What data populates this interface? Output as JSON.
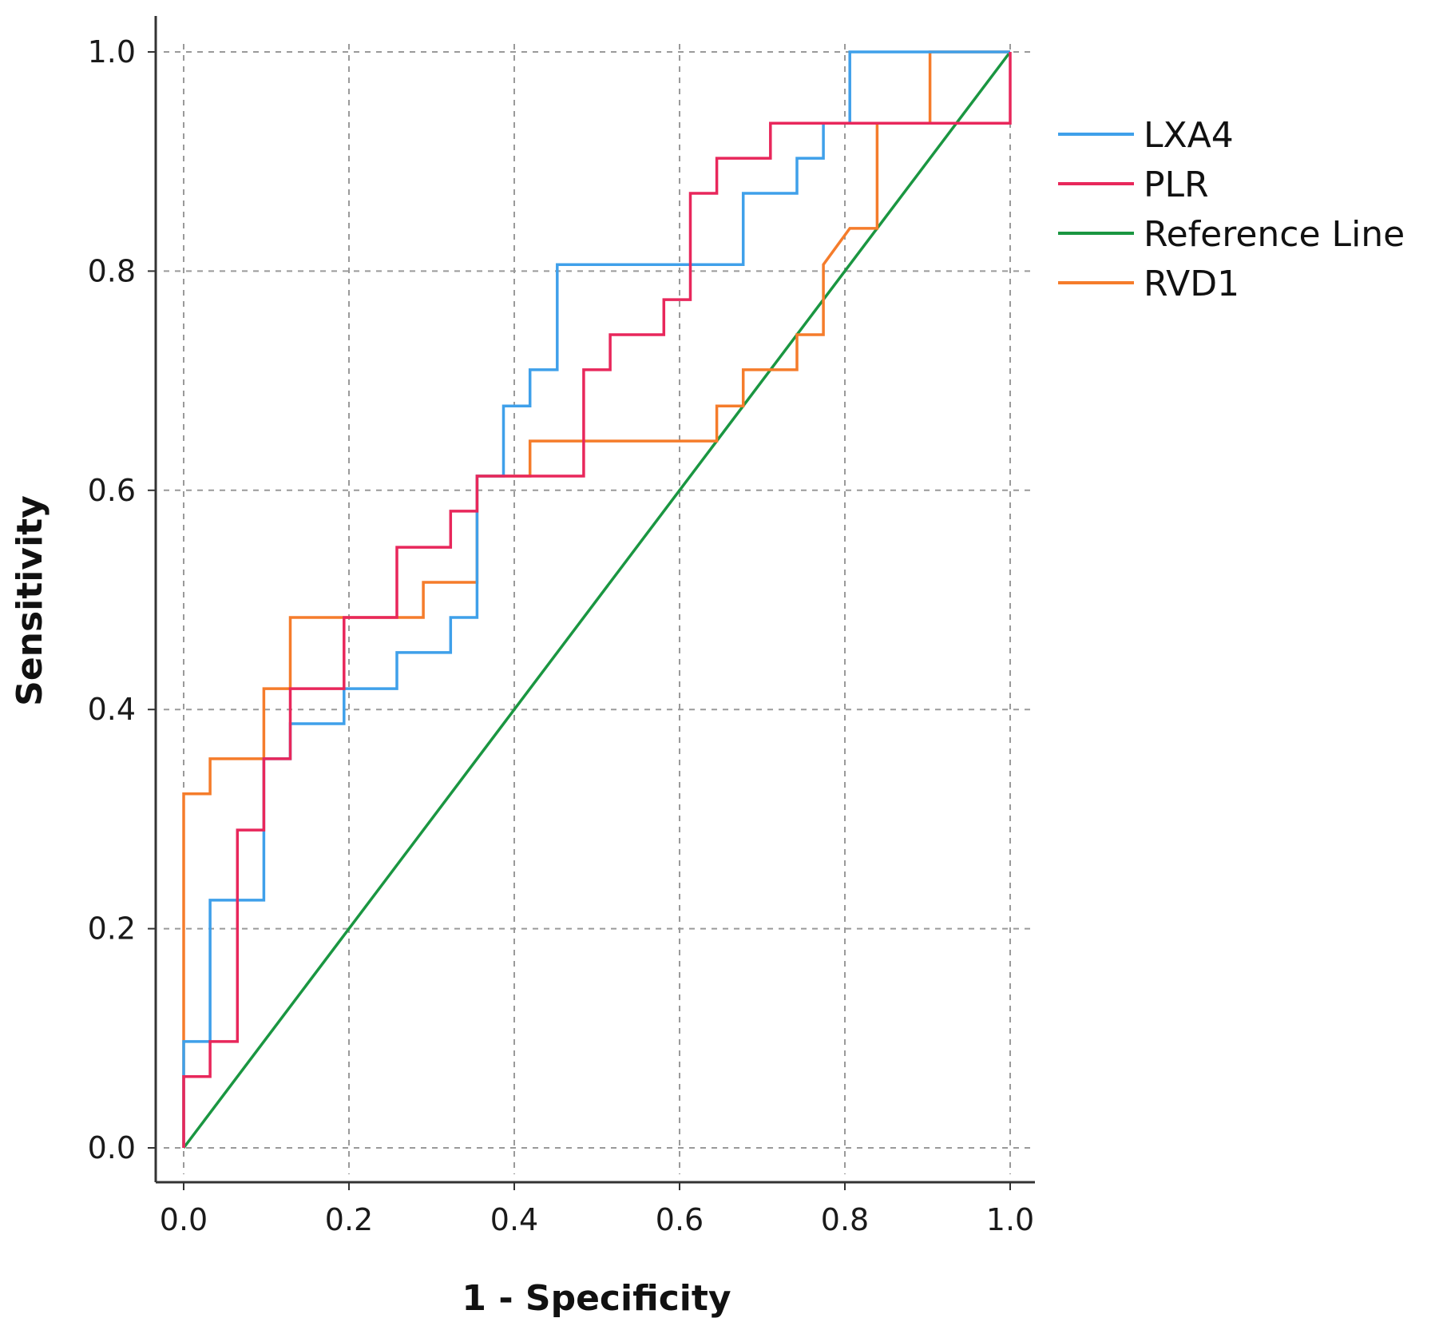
{
  "chart_data": {
    "type": "line",
    "title": "",
    "xlabel": "1 - Specificity",
    "ylabel": "Sensitivity",
    "xlim": [
      0,
      1
    ],
    "ylim": [
      0,
      1
    ],
    "xticks": [
      0.0,
      0.2,
      0.4,
      0.6,
      0.8,
      1.0
    ],
    "yticks": [
      0.0,
      0.2,
      0.4,
      0.6,
      0.8,
      1.0
    ],
    "tick_labels": [
      "0.0",
      "0.2",
      "0.4",
      "0.6",
      "0.8",
      "1.0"
    ],
    "grid": true,
    "legend_position": "right",
    "series": [
      {
        "name": "LXA4",
        "color": "#3fa0ea",
        "x": [
          0,
          0,
          0.032,
          0.032,
          0.097,
          0.097,
          0.129,
          0.129,
          0.194,
          0.194,
          0.258,
          0.258,
          0.323,
          0.323,
          0.355,
          0.355,
          0.387,
          0.387,
          0.419,
          0.419,
          0.452,
          0.452,
          0.677,
          0.677,
          0.742,
          0.742,
          0.774,
          0.774,
          0.806,
          0.806,
          1.0,
          1.0
        ],
        "y": [
          0,
          0.097,
          0.097,
          0.226,
          0.226,
          0.355,
          0.355,
          0.387,
          0.387,
          0.419,
          0.419,
          0.452,
          0.452,
          0.484,
          0.484,
          0.613,
          0.613,
          0.677,
          0.677,
          0.71,
          0.71,
          0.806,
          0.806,
          0.871,
          0.871,
          0.903,
          0.903,
          0.935,
          0.935,
          1.0,
          1.0,
          1.0
        ]
      },
      {
        "name": "PLR",
        "color": "#e8275b",
        "x": [
          0,
          0,
          0.032,
          0.032,
          0.065,
          0.065,
          0.097,
          0.097,
          0.129,
          0.129,
          0.194,
          0.194,
          0.258,
          0.258,
          0.323,
          0.323,
          0.355,
          0.355,
          0.484,
          0.484,
          0.516,
          0.516,
          0.581,
          0.581,
          0.613,
          0.613,
          0.645,
          0.645,
          0.71,
          0.71,
          1.0,
          1.0
        ],
        "y": [
          0,
          0.065,
          0.065,
          0.097,
          0.097,
          0.29,
          0.29,
          0.355,
          0.355,
          0.419,
          0.419,
          0.484,
          0.484,
          0.548,
          0.548,
          0.581,
          0.581,
          0.613,
          0.613,
          0.71,
          0.71,
          0.742,
          0.742,
          0.774,
          0.774,
          0.871,
          0.871,
          0.903,
          0.903,
          0.935,
          0.935,
          1.0
        ]
      },
      {
        "name": "Reference Line",
        "color": "#1a9641",
        "x": [
          0,
          1
        ],
        "y": [
          0,
          1
        ]
      },
      {
        "name": "RVD1",
        "color": "#f57c2b",
        "x": [
          0,
          0,
          0.032,
          0.032,
          0.097,
          0.097,
          0.129,
          0.129,
          0.29,
          0.29,
          0.355,
          0.355,
          0.419,
          0.419,
          0.645,
          0.645,
          0.677,
          0.677,
          0.742,
          0.742,
          0.774,
          0.774,
          0.806,
          0.839,
          0.839,
          0.903,
          0.903,
          1.0
        ],
        "y": [
          0,
          0.323,
          0.323,
          0.355,
          0.355,
          0.419,
          0.419,
          0.484,
          0.484,
          0.516,
          0.516,
          0.613,
          0.613,
          0.645,
          0.645,
          0.677,
          0.677,
          0.71,
          0.71,
          0.742,
          0.742,
          0.806,
          0.839,
          0.839,
          0.935,
          0.935,
          1.0,
          1.0
        ]
      }
    ]
  }
}
